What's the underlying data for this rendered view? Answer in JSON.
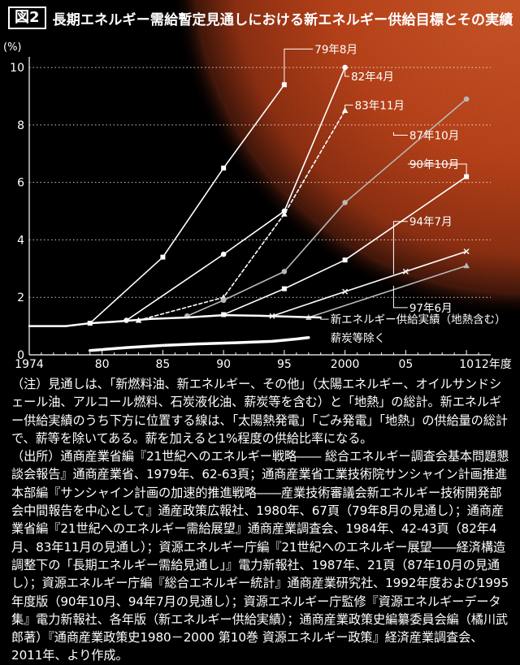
{
  "header": {
    "figure_label": "図2",
    "title": "長期エネルギー需給暫定見通しにおける新エネルギー供給目標とその実績"
  },
  "chart_data": {
    "type": "line",
    "y_unit": "(%)",
    "x_unit_label": "12年度",
    "x_ticks": [
      {
        "value": 1974,
        "label": "1974"
      },
      {
        "value": 1980,
        "label": "80"
      },
      {
        "value": 1985,
        "label": "85"
      },
      {
        "value": 1990,
        "label": "90"
      },
      {
        "value": 1995,
        "label": "95"
      },
      {
        "value": 2000,
        "label": "2000"
      },
      {
        "value": 2005,
        "label": "05"
      },
      {
        "value": 2010,
        "label": "10"
      }
    ],
    "y_ticks": [
      0,
      2,
      4,
      6,
      8,
      10
    ],
    "xlim": [
      1974,
      2012
    ],
    "ylim": [
      0,
      10.2
    ],
    "grid": "dotted-horizontal",
    "series": [
      {
        "name": "79年8月",
        "color": "#ffffff",
        "style": "solid",
        "marker": "square",
        "points": [
          [
            1979,
            1.1
          ],
          [
            1985,
            3.4
          ],
          [
            1990,
            6.5
          ],
          [
            1995,
            9.4
          ]
        ],
        "label_at": [
          1997.5,
          10.5
        ],
        "leader_from": [
          1995,
          9.4
        ]
      },
      {
        "name": "82年4月",
        "color": "#ffffff",
        "style": "solid",
        "marker": "circle",
        "points": [
          [
            1982,
            1.2
          ],
          [
            1990,
            3.5
          ],
          [
            1995,
            5.0
          ],
          [
            2000,
            10.0
          ]
        ],
        "label_at": [
          2000.5,
          9.55
        ],
        "leader_from": [
          2000,
          10.0
        ]
      },
      {
        "name": "83年11月",
        "color": "#ffffff",
        "style": "dashed",
        "marker": "triangle",
        "points": [
          [
            1983,
            1.2
          ],
          [
            1990,
            2.0
          ],
          [
            1995,
            4.9
          ],
          [
            2000,
            8.5
          ]
        ],
        "label_at": [
          2000.8,
          8.55
        ],
        "leader_from": [
          2000,
          8.5
        ]
      },
      {
        "name": "87年10月",
        "color": "#b8b8b8",
        "style": "solid",
        "marker": "circle",
        "points": [
          [
            1987,
            1.35
          ],
          [
            1990,
            1.9
          ],
          [
            1995,
            2.9
          ],
          [
            2000,
            5.3
          ],
          [
            2010,
            8.9
          ]
        ],
        "label_at": [
          2005.3,
          7.5
        ],
        "leader_from": [
          2004,
          7.75
        ]
      },
      {
        "name": "90年10月",
        "color": "#ffffff",
        "style": "solid",
        "marker": "square",
        "points": [
          [
            1990,
            1.4
          ],
          [
            1995,
            2.3
          ],
          [
            2000,
            3.3
          ],
          [
            2010,
            6.2
          ]
        ],
        "label_at": [
          2005.3,
          6.5
        ],
        "leader_from": [
          2010,
          6.2
        ]
      },
      {
        "name": "94年7月",
        "color": "#ffffff",
        "style": "solid",
        "marker": "x",
        "points": [
          [
            1994,
            1.35
          ],
          [
            2000,
            2.2
          ],
          [
            2005,
            2.9
          ],
          [
            2010,
            3.6
          ]
        ],
        "label_at": [
          2005.3,
          4.5
        ],
        "leader_from": [
          2004,
          2.8
        ]
      },
      {
        "name": "97年6月",
        "color": "#b8b8b8",
        "style": "solid",
        "marker": "triangle",
        "points": [
          [
            1997,
            1.3
          ],
          [
            2010,
            3.1
          ]
        ],
        "label_at": [
          2005.3,
          1.5
        ],
        "leader_from": [
          2004,
          2.4
        ]
      },
      {
        "name": "新エネルギー供給実績（地熱含む）",
        "color": "#ffffff",
        "style": "solid",
        "marker": "none",
        "stroke": 2.5,
        "points": [
          [
            1974,
            1.0
          ],
          [
            1977,
            1.0
          ],
          [
            1979,
            1.1
          ],
          [
            1981,
            1.15
          ],
          [
            1984,
            1.25
          ],
          [
            1987,
            1.3
          ],
          [
            1990,
            1.38
          ],
          [
            1993,
            1.36
          ],
          [
            1996,
            1.32
          ],
          [
            1998,
            1.3
          ]
        ],
        "label_at": [
          1998.8,
          1.1
        ],
        "leader_from": [
          1998,
          1.3
        ]
      },
      {
        "name": "薪炭等除く",
        "color": "#ffffff",
        "style": "solid",
        "marker": "none",
        "stroke": 3.5,
        "points": [
          [
            1979,
            0.15
          ],
          [
            1982,
            0.25
          ],
          [
            1985,
            0.33
          ],
          [
            1988,
            0.38
          ],
          [
            1991,
            0.42
          ],
          [
            1994,
            0.47
          ],
          [
            1996,
            0.55
          ],
          [
            1997,
            0.6
          ]
        ],
        "label_at": [
          1998.8,
          0.45
        ],
        "leader_from": null
      }
    ]
  },
  "notes": [
    "（注）見通しは、「新燃料油、新エネルギー、その他」（太陽エネルギー、オイルサンドシェール油、アルコール燃料、石炭液化油、薪炭等を含む）と「地熱」の総計。新エネルギー供給実績のうち下方に位置する線は、「太陽熱発電」「ごみ発電」「地熱」の供給量の総計で、薪等を除いてある。薪を加えると1%程度の供給比率になる。",
    "（出所）通商産業省編『21世紀へのエネルギー戦略―― 総合エネルギー調査会基本問題懇談会報告』通商産業省、1979年、62-63頁；通商産業省工業技術院サンシャイン計画推進本部編『サンシャイン計画の加速的推進戦略――産業技術審議会新エネルギー技術開発部会中間報告を中心として』通産政策広報社、1980年、67頁（79年8月の見通し）；通商産業省編『21世紀へのエネルギー需給展望』通商産業調査会、1984年、42-43頁（82年4月、83年11月の見通し）；資源エネルギー庁編『21世紀へのエネルギー展望――経済構造調整下の「長期エネルギー需給見通し」』電力新報社、1987年、21頁（87年10月の見通し）；資源エネルギー庁編『総合エネルギー統計』通商産業研究社、1992年度および1995年度版（90年10月、94年7月の見通し）；資源エネルギー庁監修『資源エネルギーデータ集』電力新報社、各年版（新エネルギー供給実績）；通商産業政策史編纂委員会編（橘川武郎著）『通商産業政策史1980－2000 第10巻 資源エネルギー政策』経済産業調査会、2011年、より作成。"
  ]
}
